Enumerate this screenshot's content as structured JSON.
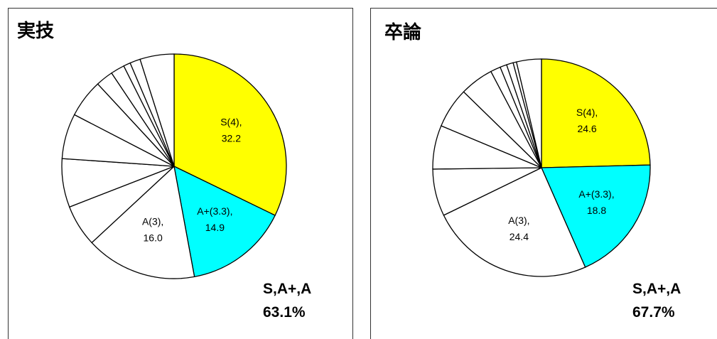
{
  "chart_data": [
    {
      "type": "pie",
      "title": "実技",
      "categories": [
        "S(4),",
        "A+(3.3),",
        "A(3),",
        null,
        null,
        null,
        null,
        null,
        null,
        null,
        null,
        null
      ],
      "values": [
        32.2,
        14.9,
        16.0,
        6.0,
        7.0,
        6.5,
        5.5,
        2.5,
        2.0,
        1.0,
        1.5,
        4.9
      ],
      "value_labels": [
        "32.2",
        "14.9",
        "16.0",
        null,
        null,
        null,
        null,
        null,
        null,
        null,
        null,
        null
      ],
      "colors": [
        "#ffff00",
        "#00ffff",
        "#ffffff",
        "#ffffff",
        "#ffffff",
        "#ffffff",
        "#ffffff",
        "#ffffff",
        "#ffffff",
        "#ffffff",
        "#ffffff",
        "#ffffff"
      ],
      "annotations": [
        "S,A+,A",
        "63.1%"
      ]
    },
    {
      "type": "pie",
      "title": "卒論",
      "categories": [
        "S(4),",
        "A+(3.3),",
        "A(3),",
        null,
        null,
        null,
        null,
        null,
        null,
        null,
        null,
        null
      ],
      "values": [
        24.6,
        18.8,
        24.4,
        7.0,
        6.5,
        6.0,
        5.0,
        1.5,
        1.0,
        1.0,
        0.5,
        3.7
      ],
      "value_labels": [
        "24.6",
        "18.8",
        "24.4",
        null,
        null,
        null,
        null,
        null,
        null,
        null,
        null,
        null
      ],
      "colors": [
        "#ffff00",
        "#00ffff",
        "#ffffff",
        "#ffffff",
        "#ffffff",
        "#ffffff",
        "#ffffff",
        "#ffffff",
        "#ffffff",
        "#ffffff",
        "#ffffff",
        "#ffffff"
      ],
      "annotations": [
        "S,A+,A",
        "67.7%"
      ]
    }
  ]
}
